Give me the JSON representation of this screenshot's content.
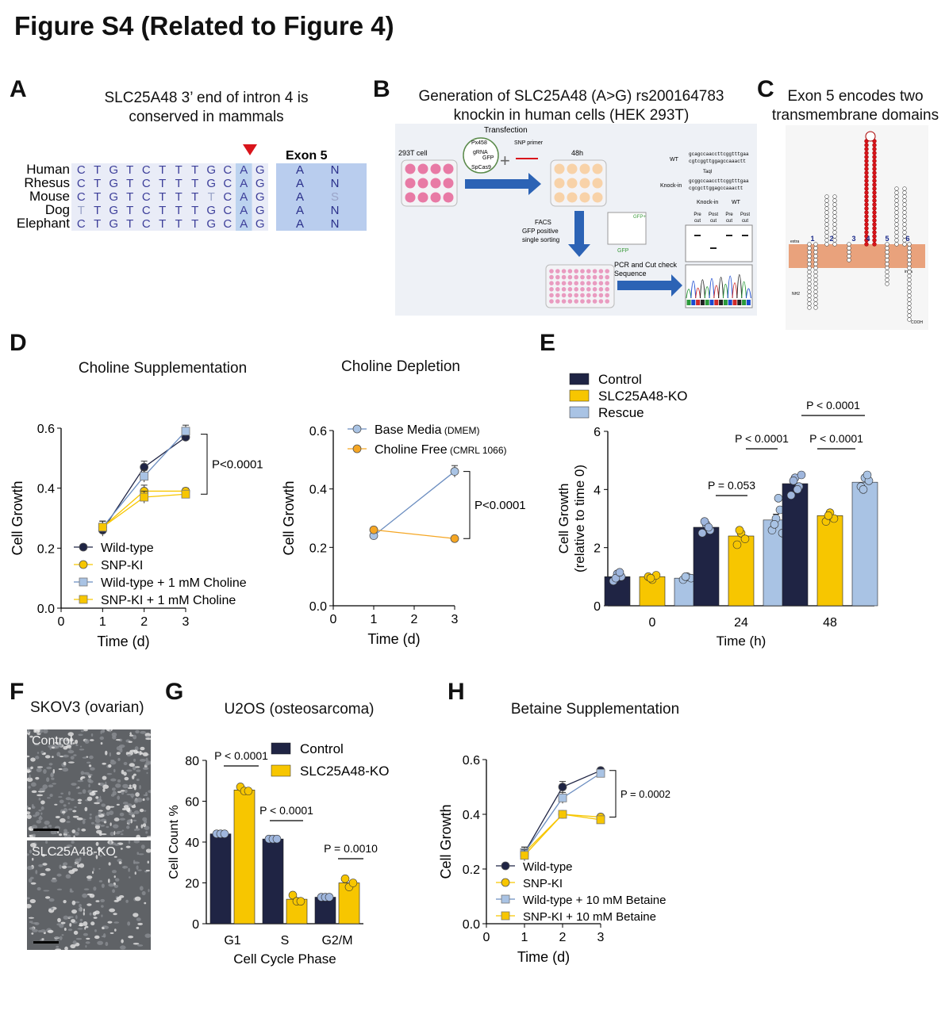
{
  "figure_title": "Figure S4 (Related to Figure 4)",
  "panels": {
    "A": {
      "letter": "A",
      "title_line1": "SLC25A48 3’ end of intron 4 is",
      "title_line2": "conserved in mammals",
      "exon_label": "Exon 5",
      "species": [
        {
          "name": "Human",
          "seq": [
            "C",
            "T",
            "G",
            "T",
            "C",
            "T",
            "T",
            "T",
            "G",
            "C",
            "A",
            "G"
          ],
          "aa": [
            "A",
            "N"
          ]
        },
        {
          "name": "Rhesus",
          "seq": [
            "C",
            "T",
            "G",
            "T",
            "C",
            "T",
            "T",
            "T",
            "G",
            "C",
            "A",
            "G"
          ],
          "aa": [
            "A",
            "N"
          ]
        },
        {
          "name": "Mouse",
          "seq": [
            "C",
            "T",
            "G",
            "T",
            "C",
            "T",
            "T",
            "T",
            "T",
            "C",
            "A",
            "G"
          ],
          "aa": [
            "A",
            "S"
          ]
        },
        {
          "name": "Dog",
          "seq": [
            "T",
            "T",
            "G",
            "T",
            "C",
            "T",
            "T",
            "T",
            "G",
            "C",
            "A",
            "G"
          ],
          "aa": [
            "A",
            "N"
          ]
        },
        {
          "name": "Elephant",
          "seq": [
            "C",
            "T",
            "G",
            "T",
            "C",
            "T",
            "T",
            "T",
            "G",
            "C",
            "A",
            "G"
          ],
          "aa": [
            "A",
            "N"
          ]
        }
      ]
    },
    "B": {
      "letter": "B",
      "title_line1": "Generation of SLC25A48 (A>G) rs200164783",
      "title_line2": "knockin in human cells (HEK 293T)",
      "labels": {
        "transfection": "Transfection",
        "cell": "293T cell",
        "px458": "Px458",
        "grna": "gRNA",
        "gfp": "GFP",
        "spcas9": "SpCas9",
        "snp_primer": "SNP primer",
        "time48": "48h",
        "facs1": "FACS",
        "facs2": "GFP positive",
        "facs3": "single sorting",
        "gfp_axis": "GFP",
        "gfp_plus": "GFP+",
        "pcr1": "PCR and Cut check",
        "pcr2": "Sequence",
        "wt": "WT",
        "knockin": "Knock-in",
        "taq": "TaqI",
        "seq_wt_1": "gcagccaaccttcggtttgaa",
        "seq_wt_2": "cgtcggttggagccaaactt",
        "seq_ki_1": "gcggccaaccttcggtttgaa",
        "seq_ki_2": "cgcgcttggagccaaactt",
        "gel_ki": "Knock-in",
        "gel_wt": "WT",
        "gel_lanes": [
          "Pre cut",
          "Post cut",
          "Pre cut",
          "Post cut"
        ]
      }
    },
    "C": {
      "letter": "C",
      "title_line1": "Exon 5 encodes two",
      "title_line2": "transmembrane domains",
      "tm_numbers": [
        "1",
        "2",
        "3",
        "4",
        "5",
        "6"
      ],
      "extra": "extra",
      "intra": "intra",
      "nterm": "NH2",
      "cterm": "COOH"
    },
    "D": {
      "letter": "D"
    },
    "E": {
      "letter": "E"
    },
    "F": {
      "letter": "F",
      "title": "SKOV3 (ovarian)",
      "img1_label": "Control",
      "img2_label": "SLC25A48-KO"
    },
    "G": {
      "letter": "G"
    },
    "H": {
      "letter": "H"
    }
  },
  "colors": {
    "navy": "#1f2444",
    "yellow": "#f7c600",
    "lightblue": "#a9c3e4",
    "orange": "#f5a623",
    "red": "#d9141b"
  },
  "chart_data": [
    {
      "id": "D-left",
      "type": "line",
      "title": "Choline Supplementation",
      "xlabel": "Time (d)",
      "ylabel": "Cell  Growth",
      "xlim": [
        0,
        3
      ],
      "ylim": [
        0,
        0.6
      ],
      "xticks": [
        "0",
        "1",
        "2",
        "3"
      ],
      "yticks": [
        "0.0",
        "0.2",
        "0.4",
        "0.6"
      ],
      "annotation": "P<0.0001",
      "series": [
        {
          "name": "Wild-type",
          "x": [
            1,
            2,
            3
          ],
          "y": [
            0.26,
            0.47,
            0.57
          ],
          "err": [
            0.02,
            0.02,
            0.01
          ],
          "color": "#1f2444",
          "marker": "circle"
        },
        {
          "name": "SNP-KI",
          "x": [
            1,
            2,
            3
          ],
          "y": [
            0.27,
            0.39,
            0.39
          ],
          "err": [
            0.02,
            0.02,
            0.01
          ],
          "color": "#f7c600",
          "marker": "circle"
        },
        {
          "name": "Wild-type + 1 mM Choline",
          "x": [
            1,
            2,
            3
          ],
          "y": [
            0.27,
            0.44,
            0.59
          ],
          "err": [
            0.02,
            0.02,
            0.02
          ],
          "color": "#a9c3e4",
          "marker": "square"
        },
        {
          "name": "SNP-KI + 1 mM Choline",
          "x": [
            1,
            2,
            3
          ],
          "y": [
            0.27,
            0.37,
            0.38
          ],
          "err": [
            0.02,
            0.02,
            0.01
          ],
          "color": "#f7c600",
          "marker": "square"
        }
      ]
    },
    {
      "id": "D-right",
      "type": "line",
      "title": "Choline Depletion",
      "xlabel": "Time (d)",
      "ylabel": "Cell  Growth",
      "xlim": [
        0,
        3
      ],
      "ylim": [
        0,
        0.6
      ],
      "xticks": [
        "0",
        "1",
        "2",
        "3"
      ],
      "yticks": [
        "0.0",
        "0.2",
        "0.4",
        "0.6"
      ],
      "annotation": "P<0.0001",
      "series": [
        {
          "name": "Base Media",
          "name_sub": "(DMEM)",
          "x": [
            1,
            3
          ],
          "y": [
            0.24,
            0.46
          ],
          "err": [
            0,
            0.02
          ],
          "color": "#a9c3e4",
          "marker": "circle"
        },
        {
          "name": "Choline Free",
          "name_sub": "(CMRL 1066)",
          "x": [
            1,
            3
          ],
          "y": [
            0.26,
            0.23
          ],
          "err": [
            0,
            0
          ],
          "color": "#f5a623",
          "marker": "circle"
        }
      ]
    },
    {
      "id": "E",
      "type": "bar",
      "xlabel": "Time (h)",
      "ylabel": "Cell  Growth",
      "ylabel2": "(relative to time 0)",
      "categories": [
        "0",
        "24",
        "48"
      ],
      "ylim": [
        0,
        6
      ],
      "yticks": [
        "0",
        "2",
        "4",
        "6"
      ],
      "series": [
        {
          "name": "Control",
          "values": [
            1.0,
            2.7,
            4.2
          ],
          "err": [
            0.1,
            0.15,
            0.2
          ],
          "color": "#1f2444",
          "points": [
            [
              0.85,
              1.1,
              1.0,
              0.95,
              1.15
            ],
            [
              2.5,
              2.8,
              2.6,
              2.9,
              2.7
            ],
            [
              3.8,
              4.4,
              4.1,
              4.3,
              4.0,
              4.5
            ]
          ]
        },
        {
          "name": "SLC25A48-KO",
          "values": [
            1.0,
            2.4,
            3.1
          ],
          "err": [
            0.05,
            0.15,
            0.15
          ],
          "color": "#f7c600",
          "points": [
            [
              1.0,
              0.9,
              1.05,
              0.95
            ],
            [
              2.1,
              2.5,
              2.3,
              2.6
            ],
            [
              2.9,
              3.2,
              3.0,
              3.1
            ]
          ]
        },
        {
          "name": "Rescue",
          "values": [
            0.95,
            2.95,
            4.25
          ],
          "err": [
            0.05,
            0.2,
            0.15
          ],
          "color": "#a9c3e4",
          "points": [
            [
              0.9,
              1.0,
              0.95,
              1.0
            ],
            [
              2.6,
              3.0,
              3.3,
              2.8,
              3.7,
              2.5
            ],
            [
              4.1,
              4.4,
              4.3,
              4.0,
              4.5
            ]
          ]
        }
      ],
      "annotations": [
        "P = 0.053",
        "P < 0.0001",
        "P < 0.0001",
        "P < 0.0001"
      ]
    },
    {
      "id": "G",
      "type": "bar",
      "title": "U2OS (osteosarcoma)",
      "xlabel": "Cell Cycle Phase",
      "ylabel": "Cell Count %",
      "categories": [
        "G1",
        "S",
        "G2/M"
      ],
      "ylim": [
        0,
        80
      ],
      "yticks": [
        "0",
        "20",
        "40",
        "60",
        "80"
      ],
      "series": [
        {
          "name": "Control",
          "values": [
            44,
            41.5,
            13
          ],
          "color": "#1f2444",
          "points": [
            [
              44,
              44,
              44
            ],
            [
              41.5,
              41.5,
              41.5
            ],
            [
              13,
              13,
              13
            ]
          ]
        },
        {
          "name": "SLC25A48-KO",
          "values": [
            65.5,
            12,
            20
          ],
          "color": "#f7c600",
          "points": [
            [
              67,
              65,
              65
            ],
            [
              14,
              11,
              11
            ],
            [
              22,
              18,
              20
            ]
          ]
        }
      ],
      "annotations": [
        "P < 0.0001",
        "P < 0.0001",
        "P = 0.0010"
      ]
    },
    {
      "id": "H",
      "type": "line",
      "title": "Betaine Supplementation",
      "xlabel": "Time (d)",
      "ylabel": "Cell  Growth",
      "xlim": [
        0,
        3
      ],
      "ylim": [
        0,
        0.6
      ],
      "xticks": [
        "0",
        "1",
        "2",
        "3"
      ],
      "yticks": [
        "0.0",
        "0.2",
        "0.4",
        "0.6"
      ],
      "annotation": "P = 0.0002",
      "series": [
        {
          "name": "Wild-type",
          "x": [
            1,
            2,
            3
          ],
          "y": [
            0.26,
            0.5,
            0.56
          ],
          "err": [
            0.02,
            0.02,
            0.01
          ],
          "color": "#1f2444",
          "marker": "circle"
        },
        {
          "name": "SNP-KI",
          "x": [
            1,
            2,
            3
          ],
          "y": [
            0.26,
            0.4,
            0.39
          ],
          "err": [
            0.02,
            0.01,
            0.01
          ],
          "color": "#f7c600",
          "marker": "circle"
        },
        {
          "name": "Wild-type + 10 mM Betaine",
          "x": [
            1,
            2,
            3
          ],
          "y": [
            0.26,
            0.46,
            0.55
          ],
          "err": [
            0.02,
            0.02,
            0.01
          ],
          "color": "#a9c3e4",
          "marker": "square"
        },
        {
          "name": "SNP-KI + 10 mM Betaine",
          "x": [
            1,
            2,
            3
          ],
          "y": [
            0.25,
            0.4,
            0.38
          ],
          "err": [
            0.02,
            0.01,
            0.01
          ],
          "color": "#f7c600",
          "marker": "square"
        }
      ]
    }
  ]
}
